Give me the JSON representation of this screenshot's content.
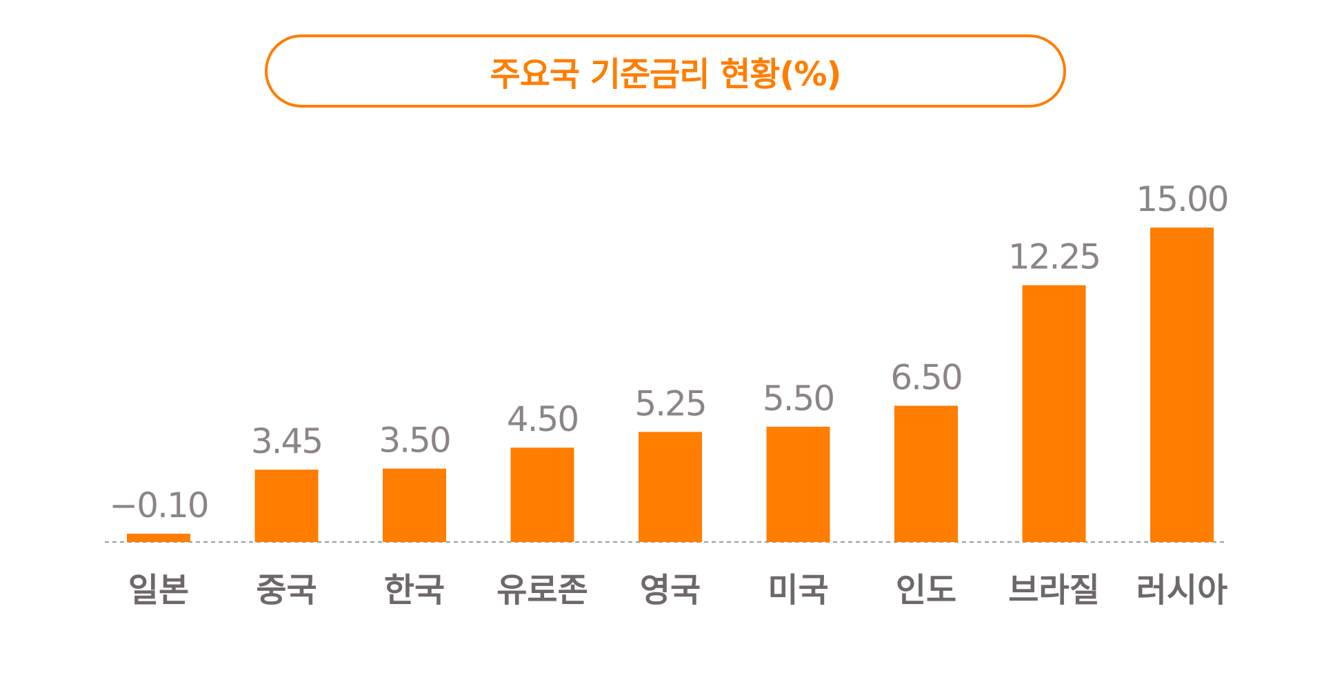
{
  "chart_data": {
    "type": "bar",
    "title": "주요국 기준금리 현황(%)",
    "categories": [
      "일본",
      "중국",
      "한국",
      "유로존",
      "영국",
      "미국",
      "인도",
      "브라질",
      "러시아"
    ],
    "values": [
      -0.1,
      3.45,
      3.5,
      4.5,
      5.25,
      5.5,
      6.5,
      12.25,
      15.0
    ],
    "value_labels": [
      "−0.10",
      "3.45",
      "3.50",
      "4.50",
      "5.25",
      "5.50",
      "6.50",
      "12.25",
      "15.00"
    ],
    "xlabel": "",
    "ylabel": "",
    "ylim": [
      0,
      15
    ],
    "grid": false,
    "legend": "none",
    "colors": {
      "bar": "#ff7d00",
      "title": "#ff7d00",
      "value_label": "#8c8485",
      "category_label": "#6f6869"
    }
  }
}
